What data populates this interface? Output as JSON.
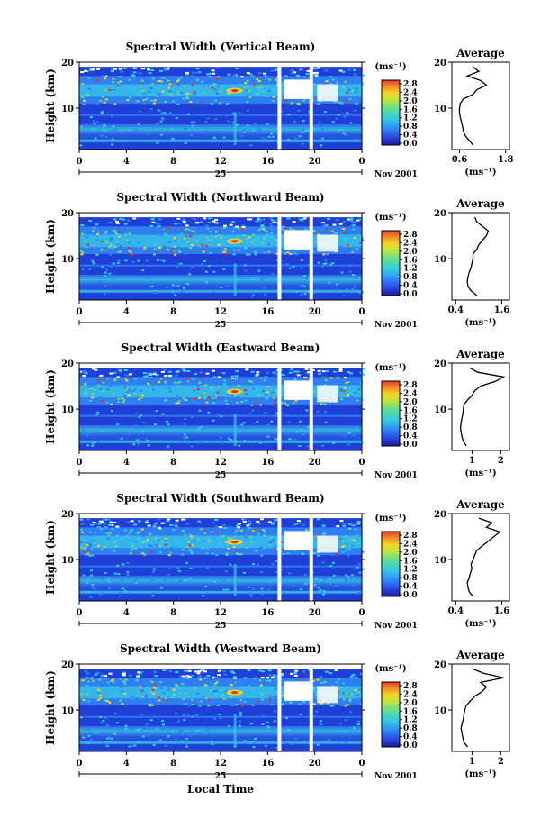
{
  "figure": {
    "xlabel": "Local Time",
    "date_label": "Nov 2001",
    "colorbar_unit": "(ms⁻¹)",
    "profile_xlabel": "(ms⁻¹)",
    "profile_title": "Average",
    "colorbar_ticks": [
      "0.0",
      "0.4",
      "0.8",
      "1.2",
      "1.6",
      "2.0",
      "2.4",
      "2.8"
    ],
    "colorbar_colors": [
      "#1c1c8c",
      "#2a3ed8",
      "#2f6ef2",
      "#2fa0f2",
      "#36c8e4",
      "#4ad8b0",
      "#7ce07a",
      "#c4e43c",
      "#f2d42c",
      "#f2902a",
      "#e83a2a"
    ],
    "colors": {
      "background": "#1f3fd6",
      "mid": "#2f7ef4",
      "cyan": "#37c8ea",
      "green": "#6ad88a",
      "yellow": "#f2d230",
      "red": "#e2322a",
      "gap": "#ffffff"
    }
  },
  "chart_data": [
    {
      "type": "heatmap",
      "title": "Spectral Width (Vertical Beam)",
      "xlabel": "Local Time",
      "ylabel": "Height (km)",
      "x_ticks": [
        "0",
        "4",
        "8",
        "12",
        "16",
        "20",
        "0"
      ],
      "y_ticks": [
        "20",
        "10"
      ],
      "xlim": [
        0,
        24
      ],
      "ylim": [
        1,
        20
      ],
      "day_label": "25",
      "date_label": "Nov 2001",
      "colorbar_ticks": [
        "0.0",
        "0.4",
        "0.8",
        "1.2",
        "1.6",
        "2.0",
        "2.4",
        "2.8"
      ],
      "data_gaps_hours": [
        17.0,
        19.7
      ],
      "profile": {
        "title": "Average",
        "xlabel": "(ms⁻¹)",
        "x_ticks": [
          "0.6",
          "1.8"
        ],
        "xlim": [
          0.4,
          1.9
        ],
        "y_ticks": [
          "20",
          "10"
        ],
        "heights": [
          2,
          3,
          4,
          5,
          6,
          7,
          8,
          9,
          10,
          11,
          12,
          13,
          14,
          15,
          16,
          17,
          18,
          19
        ],
        "values": [
          0.95,
          0.85,
          0.75,
          0.7,
          0.68,
          0.65,
          0.62,
          0.6,
          0.6,
          0.62,
          0.7,
          0.95,
          1.05,
          1.3,
          1.15,
          0.8,
          1.1,
          0.95
        ]
      }
    },
    {
      "type": "heatmap",
      "title": "Spectral Width (Northward Beam)",
      "xlabel": "Local Time",
      "ylabel": "Height (km)",
      "x_ticks": [
        "0",
        "4",
        "8",
        "12",
        "16",
        "20",
        "0"
      ],
      "y_ticks": [
        "20",
        "10"
      ],
      "xlim": [
        0,
        24
      ],
      "ylim": [
        1,
        20
      ],
      "day_label": "25",
      "date_label": "Nov 2001",
      "colorbar_ticks": [
        "0.0",
        "0.4",
        "0.8",
        "1.2",
        "1.6",
        "2.0",
        "2.4",
        "2.8"
      ],
      "data_gaps_hours": [
        17.0,
        19.7
      ],
      "profile": {
        "title": "Average",
        "xlabel": "(ms⁻¹)",
        "x_ticks": [
          "0.4",
          "1.6"
        ],
        "xlim": [
          0.3,
          1.8
        ],
        "y_ticks": [
          "20",
          "10"
        ],
        "heights": [
          2,
          3,
          4,
          5,
          6,
          7,
          8,
          9,
          10,
          11,
          12,
          13,
          14,
          15,
          16,
          17,
          18,
          19
        ],
        "values": [
          0.95,
          0.8,
          0.72,
          0.7,
          0.72,
          0.75,
          0.8,
          0.82,
          0.85,
          0.85,
          0.95,
          1.0,
          1.1,
          1.2,
          1.25,
          1.1,
          0.95,
          0.9
        ]
      }
    },
    {
      "type": "heatmap",
      "title": "Spectral Width (Eastward Beam)",
      "xlabel": "Local Time",
      "ylabel": "Height (km)",
      "x_ticks": [
        "0",
        "4",
        "8",
        "12",
        "16",
        "20",
        "0"
      ],
      "y_ticks": [
        "20",
        "10"
      ],
      "xlim": [
        0,
        24
      ],
      "ylim": [
        1,
        20
      ],
      "day_label": "25",
      "date_label": "Nov 2001",
      "colorbar_ticks": [
        "0.0",
        "0.4",
        "0.8",
        "1.2",
        "1.6",
        "2.0",
        "2.4",
        "2.8"
      ],
      "data_gaps_hours": [
        17.0,
        19.7
      ],
      "profile": {
        "title": "Average",
        "xlabel": "(ms⁻¹)",
        "x_ticks": [
          "1",
          "2"
        ],
        "xlim": [
          0.3,
          2.3
        ],
        "y_ticks": [
          "20",
          "10"
        ],
        "heights": [
          2,
          3,
          4,
          5,
          6,
          7,
          8,
          9,
          10,
          11,
          12,
          13,
          14,
          15,
          16,
          17,
          18,
          19
        ],
        "values": [
          0.8,
          0.7,
          0.65,
          0.62,
          0.6,
          0.62,
          0.65,
          0.68,
          0.7,
          0.72,
          0.85,
          1.0,
          1.1,
          1.3,
          1.8,
          2.1,
          1.2,
          0.9
        ]
      }
    },
    {
      "type": "heatmap",
      "title": "Spectral Width (Southward Beam)",
      "xlabel": "Local Time",
      "ylabel": "Height (km)",
      "x_ticks": [
        "0",
        "4",
        "8",
        "12",
        "16",
        "20",
        "0"
      ],
      "y_ticks": [
        "20",
        "10"
      ],
      "xlim": [
        0,
        24
      ],
      "ylim": [
        1,
        20
      ],
      "day_label": "25",
      "date_label": "Nov 2001",
      "colorbar_ticks": [
        "0.0",
        "0.4",
        "0.8",
        "1.2",
        "1.6",
        "2.0",
        "2.4",
        "2.8"
      ],
      "data_gaps_hours": [
        17.0,
        19.7
      ],
      "profile": {
        "title": "Average",
        "xlabel": "(ms⁻¹)",
        "x_ticks": [
          "0.4",
          "1.6"
        ],
        "xlim": [
          0.3,
          1.8
        ],
        "y_ticks": [
          "20",
          "10"
        ],
        "heights": [
          2,
          3,
          4,
          5,
          6,
          7,
          8,
          9,
          10,
          11,
          12,
          13,
          14,
          15,
          16,
          17,
          18,
          19
        ],
        "values": [
          0.85,
          0.75,
          0.72,
          0.7,
          0.75,
          0.78,
          0.82,
          0.8,
          0.85,
          0.9,
          0.95,
          1.1,
          1.25,
          1.4,
          1.55,
          1.2,
          1.35,
          1.0
        ]
      }
    },
    {
      "type": "heatmap",
      "title": "Spectral Width (Westward Beam)",
      "xlabel": "Local Time",
      "ylabel": "Height (km)",
      "x_ticks": [
        "0",
        "4",
        "8",
        "12",
        "16",
        "20",
        "0"
      ],
      "y_ticks": [
        "20",
        "10"
      ],
      "xlim": [
        0,
        24
      ],
      "ylim": [
        1,
        20
      ],
      "day_label": "25",
      "date_label": "Nov 2001",
      "colorbar_ticks": [
        "0.0",
        "0.4",
        "0.8",
        "1.2",
        "1.6",
        "2.0",
        "2.4",
        "2.8"
      ],
      "data_gaps_hours": [
        17.0,
        19.7
      ],
      "profile": {
        "title": "Average",
        "xlabel": "(ms⁻¹)",
        "x_ticks": [
          "1",
          "2"
        ],
        "xlim": [
          0.3,
          2.3
        ],
        "y_ticks": [
          "20",
          "10"
        ],
        "heights": [
          2,
          3,
          4,
          5,
          6,
          7,
          8,
          9,
          10,
          11,
          12,
          13,
          14,
          15,
          16,
          17,
          18,
          19
        ],
        "values": [
          0.85,
          0.72,
          0.68,
          0.65,
          0.62,
          0.65,
          0.7,
          0.72,
          0.75,
          0.8,
          0.95,
          1.1,
          1.35,
          1.5,
          1.3,
          2.1,
          1.4,
          1.0
        ]
      }
    }
  ]
}
